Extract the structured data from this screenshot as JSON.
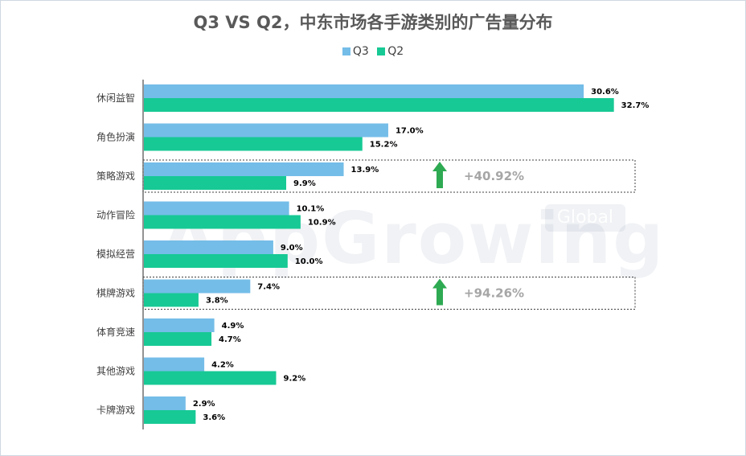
{
  "title": "Q3 VS Q2，中东市场各手游类别的广告量分布",
  "watermark": {
    "main": "AppGrowing",
    "tag": "Global"
  },
  "colors": {
    "q3": "#74bde8",
    "q2": "#17c995",
    "arrow": "#2eaa52"
  },
  "chart_data": {
    "type": "bar",
    "orientation": "horizontal",
    "title": "Q3 VS Q2，中东市场各手游类别的广告量分布",
    "categories": [
      "休闲益智",
      "角色扮演",
      "策略游戏",
      "动作冒险",
      "模拟经营",
      "棋牌游戏",
      "体育竞速",
      "其他游戏",
      "卡牌游戏"
    ],
    "series": [
      {
        "name": "Q3",
        "values": [
          30.6,
          17.0,
          13.9,
          10.1,
          9.0,
          7.4,
          4.9,
          4.2,
          2.9
        ],
        "labels": [
          "30.6%",
          "17.0%",
          "13.9%",
          "10.1%",
          "9.0%",
          "7.4%",
          "4.9%",
          "4.2%",
          "2.9%"
        ]
      },
      {
        "name": "Q2",
        "values": [
          32.7,
          15.2,
          9.9,
          10.9,
          10.0,
          3.8,
          4.7,
          9.2,
          3.6
        ],
        "labels": [
          "32.7%",
          "15.2%",
          "9.9%",
          "10.9%",
          "10.0%",
          "3.8%",
          "4.7%",
          "9.2%",
          "3.6%"
        ]
      }
    ],
    "legend_position": "top",
    "grid": false,
    "annotations": [
      {
        "category": "策略游戏",
        "text": "+40.92%"
      },
      {
        "category": "棋牌游戏",
        "text": "+94.26%"
      }
    ]
  }
}
